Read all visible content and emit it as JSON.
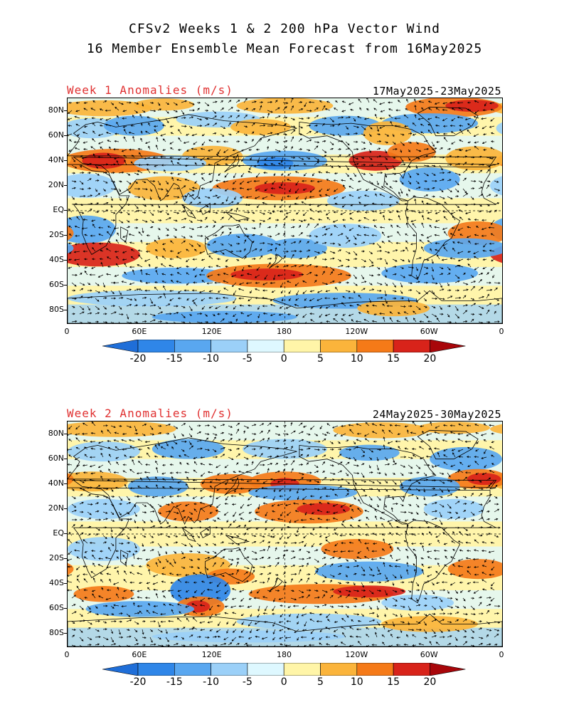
{
  "title_line1": "CFSv2 Weeks 1 & 2 200 hPa Vector Wind",
  "title_line2": "16 Member Ensemble Mean Forecast from 16May2025",
  "panels": [
    {
      "label": "Week 1 Anomalies (m/s)",
      "dates": "17May2025-23May2025"
    },
    {
      "label": "Week 2 Anomalies (m/s)",
      "dates": "24May2025-30May2025"
    }
  ],
  "lat_labels": [
    "80N",
    "60N",
    "40N",
    "20N",
    "EQ",
    "20S",
    "40S",
    "60S",
    "80S"
  ],
  "lon_labels": [
    "0",
    "60E",
    "120E",
    "180",
    "120W",
    "60W",
    "0"
  ],
  "colorbar": {
    "ticks": [
      "-20",
      "-15",
      "-10",
      "-5",
      "0",
      "5",
      "10",
      "15",
      "20"
    ],
    "colors": [
      "#1f6ed8",
      "#2f86e8",
      "#59a7f0",
      "#9bd0f8",
      "#def8ff",
      "#fff5a8",
      "#fbb43b",
      "#f57a18",
      "#d8231a",
      "#a8060a"
    ]
  },
  "colors": {
    "title_text": "#000000",
    "panel_label": "#e03030",
    "coastline": "#000000"
  }
}
